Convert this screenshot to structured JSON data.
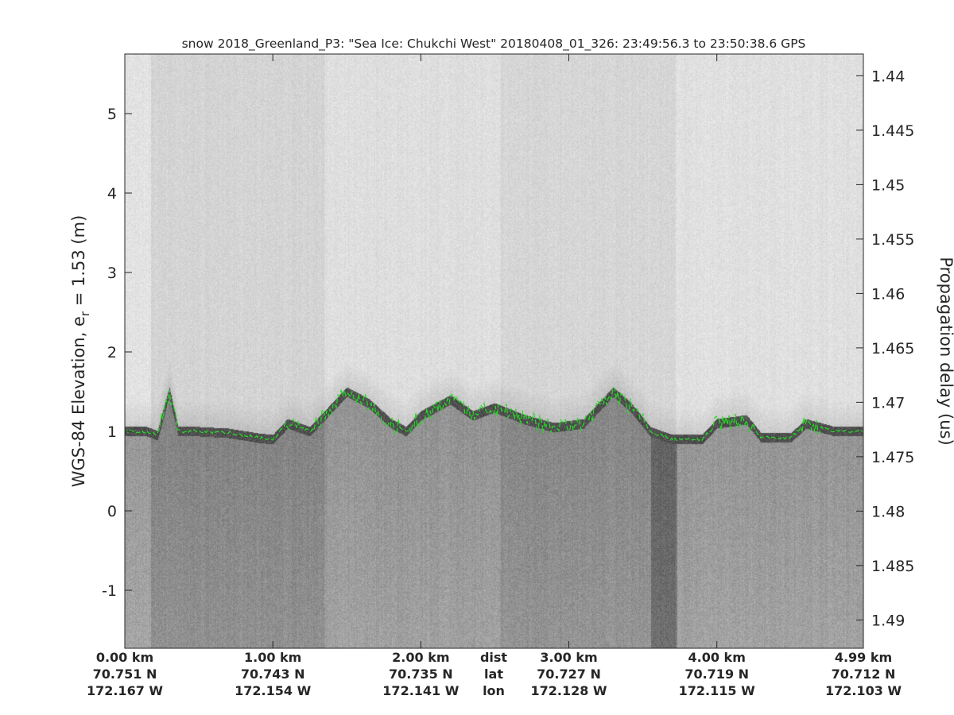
{
  "chart_data": {
    "type": "heatmap",
    "title": "snow 2018_Greenland_P3: \"Sea Ice: Chukchi West\"  20180408_01_326: 23:49:56.3 to 23:50:38.6 GPS",
    "ylabel": "WGS-84 Elevation, e",
    "ylabel_sub": "r",
    "ylabel_tail": " = 1.53 (m)",
    "y2label": "Propagation delay (us)",
    "colormap": "gray",
    "ylim": [
      -1.73,
      5.75
    ],
    "yticks": [
      5,
      4,
      3,
      2,
      1,
      0,
      -1
    ],
    "y2lim": [
      1.438,
      1.4926
    ],
    "y2ticks": [
      "1.44",
      "1.445",
      "1.45",
      "1.455",
      "1.46",
      "1.465",
      "1.47",
      "1.475",
      "1.48",
      "1.485",
      "1.49"
    ],
    "xlim_km": [
      0,
      4.99
    ],
    "xticks": [
      {
        "km": 0,
        "dist": "0.00 km",
        "lat": "70.751 N",
        "lon": "172.167 W"
      },
      {
        "km": 1,
        "dist": "1.00 km",
        "lat": "70.743 N",
        "lon": "172.154 W"
      },
      {
        "km": 2,
        "dist": "2.00 km",
        "lat": "70.735 N",
        "lon": "172.141 W"
      },
      {
        "km": 3,
        "dist": "3.00 km",
        "lat": "70.727 N",
        "lon": "172.128 W"
      },
      {
        "km": 4,
        "dist": "4.00 km",
        "lat": "70.719 N",
        "lon": "172.115 W"
      },
      {
        "km": 4.99,
        "dist": "4.99 km",
        "lat": "70.712 N",
        "lon": "172.103 W"
      }
    ],
    "xrow_labels": {
      "dist": "dist",
      "lat": "lat",
      "lon": "lon"
    },
    "surface_color": "#22dd22",
    "surface": {
      "km": [
        0,
        0.15,
        0.22,
        0.3,
        0.36,
        0.5,
        0.7,
        0.9,
        1.0,
        1.1,
        1.25,
        1.4,
        1.5,
        1.65,
        1.8,
        1.9,
        2.0,
        2.2,
        2.35,
        2.5,
        2.7,
        2.9,
        3.1,
        3.3,
        3.42,
        3.55,
        3.7,
        3.9,
        4.0,
        4.2,
        4.3,
        4.5,
        4.6,
        4.8,
        4.99
      ],
      "elev": [
        1.0,
        1.0,
        0.95,
        1.5,
        1.0,
        1.0,
        0.98,
        0.92,
        0.9,
        1.1,
        1.0,
        1.3,
        1.5,
        1.35,
        1.1,
        1.0,
        1.2,
        1.4,
        1.2,
        1.3,
        1.15,
        1.05,
        1.1,
        1.5,
        1.3,
        1.0,
        0.9,
        0.9,
        1.1,
        1.15,
        0.92,
        0.92,
        1.1,
        1.0,
        1.0
      ]
    }
  }
}
